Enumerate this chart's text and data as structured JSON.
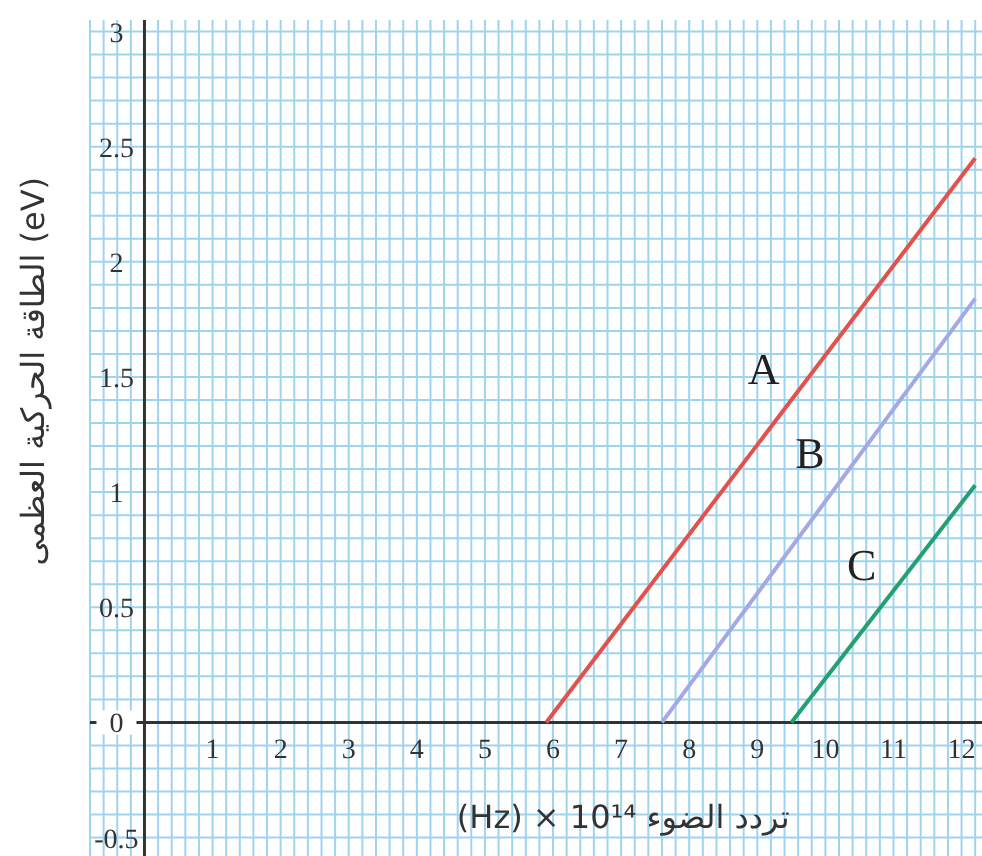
{
  "chart_data": {
    "type": "line",
    "xlabel": "(Hz) × 10¹⁴ تردد الضوء",
    "ylabel": "الطاقة الحركية العظمى (eV)",
    "xlim": [
      -0.8,
      12.3
    ],
    "ylim": [
      -0.58,
      3.05
    ],
    "xticks": [
      1,
      2,
      3,
      4,
      5,
      6,
      7,
      8,
      9,
      10,
      11,
      12
    ],
    "yticks": [
      -0.5,
      0,
      0.5,
      1,
      1.5,
      2,
      2.5,
      3
    ],
    "grid": true,
    "series": [
      {
        "name": "A",
        "color": "#e0524c",
        "x": [
          5.9,
          12.2
        ],
        "values": [
          0,
          2.45
        ]
      },
      {
        "name": "B",
        "color": "#a3a9e2",
        "x": [
          7.6,
          12.2
        ],
        "values": [
          0,
          1.84
        ]
      },
      {
        "name": "C",
        "color": "#23a072",
        "x": [
          9.5,
          12.2
        ],
        "values": [
          0,
          1.03
        ]
      }
    ]
  }
}
